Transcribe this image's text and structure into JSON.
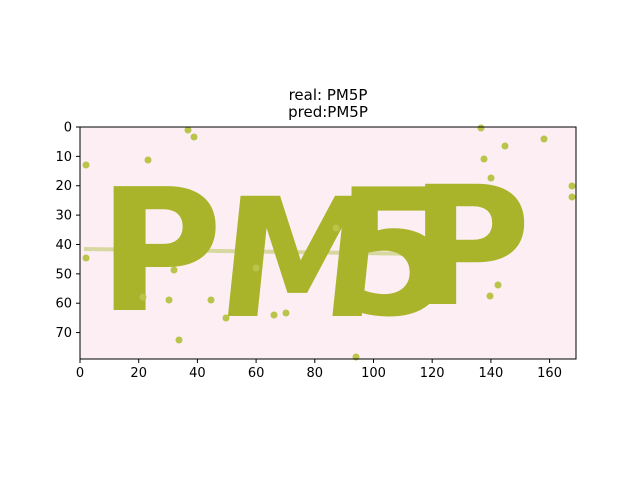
{
  "figure": {
    "title_line1": "real: PM5P",
    "title_line2": "pred:PM5P"
  },
  "image_axes": {
    "x_ticks": [
      0,
      20,
      40,
      60,
      80,
      100,
      120,
      140,
      160
    ],
    "y_ticks": [
      0,
      10,
      20,
      30,
      40,
      50,
      60,
      70
    ],
    "x_range": [
      0,
      169
    ],
    "y_range": [
      0,
      79
    ],
    "y_inverted": true
  },
  "captcha": {
    "characters": [
      "P",
      "M",
      "5",
      "P"
    ],
    "background_color": "#fdeef4",
    "ink_color": "#a9b42a",
    "noise_dot_color": "#b9c44a",
    "strike_line_color": "#d7d8a0"
  }
}
